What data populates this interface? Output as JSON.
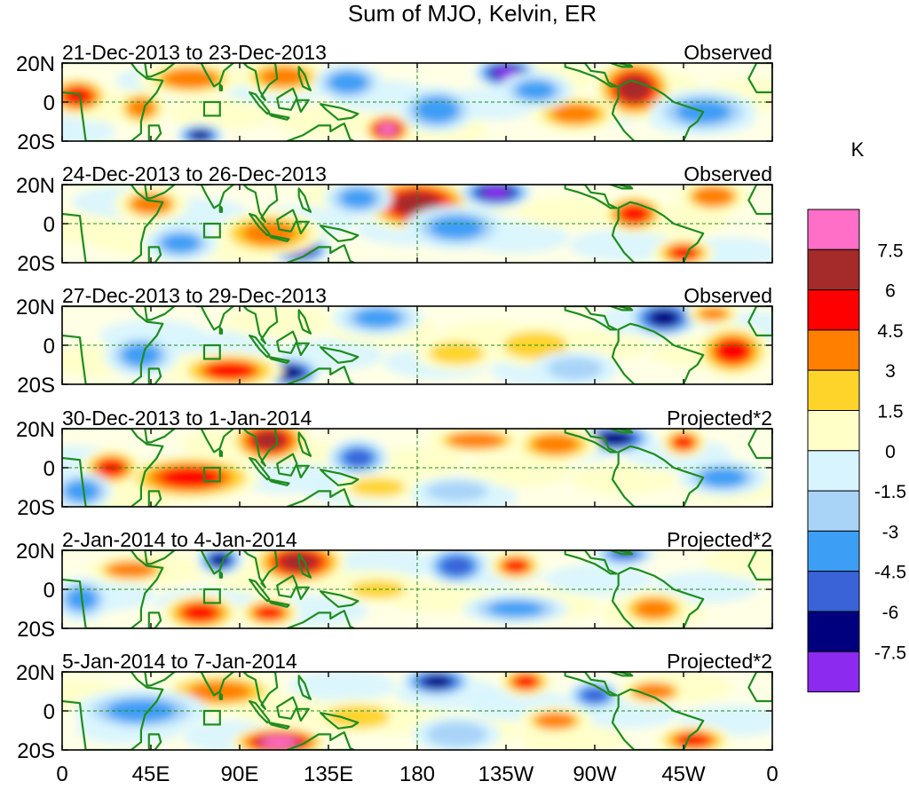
{
  "figure": {
    "title": "Sum of MJO, Kelvin, ER"
  },
  "chart_data": {
    "type": "heatmap",
    "title": "Sum of MJO, Kelvin, ER",
    "x_ticks": [
      "0",
      "45E",
      "90E",
      "135E",
      "180",
      "135W",
      "90W",
      "45W",
      "0"
    ],
    "y_ticks": [
      "20N",
      "0",
      "20S"
    ],
    "panels": [
      {
        "date_range": "21-Dec-2013 to 23-Dec-2013",
        "kind": "Observed",
        "features": [
          {
            "lon": 8,
            "lat": 3,
            "value": 5.5,
            "sx": 8,
            "sy": 5
          },
          {
            "lon": 40,
            "lat": -3,
            "value": 3.5,
            "sx": 7,
            "sy": 5
          },
          {
            "lon": 65,
            "lat": 12,
            "value": 3.2,
            "sx": 14,
            "sy": 5
          },
          {
            "lon": 112,
            "lat": 13,
            "value": 3.5,
            "sx": 12,
            "sy": 5
          },
          {
            "lon": 165,
            "lat": -14,
            "value": 7.8,
            "sx": 6,
            "sy": 4
          },
          {
            "lon": 290,
            "lat": 7,
            "value": 6.5,
            "sx": 10,
            "sy": 8
          },
          {
            "lon": 260,
            "lat": -6,
            "value": 3.5,
            "sx": 12,
            "sy": 5
          },
          {
            "lon": 225,
            "lat": 15,
            "value": -8,
            "sx": 8,
            "sy": 4
          },
          {
            "lon": 190,
            "lat": -4,
            "value": -4.5,
            "sx": 10,
            "sy": 6
          },
          {
            "lon": 145,
            "lat": 10,
            "value": -4.5,
            "sx": 9,
            "sy": 5
          },
          {
            "lon": 70,
            "lat": -17,
            "value": -7,
            "sx": 6,
            "sy": 3
          },
          {
            "lon": 325,
            "lat": -5,
            "value": -4,
            "sx": 14,
            "sy": 6
          },
          {
            "lon": 240,
            "lat": 6,
            "value": -3.5,
            "sx": 10,
            "sy": 5
          }
        ]
      },
      {
        "date_range": "24-Dec-2013 to 26-Dec-2013",
        "kind": "Observed",
        "features": [
          {
            "lon": 180,
            "lat": 10,
            "value": 7.2,
            "sx": 14,
            "sy": 7
          },
          {
            "lon": 120,
            "lat": -13,
            "value": -8,
            "sx": 8,
            "sy": 4
          },
          {
            "lon": 105,
            "lat": -5,
            "value": 4,
            "sx": 14,
            "sy": 6
          },
          {
            "lon": 290,
            "lat": 5,
            "value": 5.5,
            "sx": 8,
            "sy": 5
          },
          {
            "lon": 220,
            "lat": 16,
            "value": -8,
            "sx": 9,
            "sy": 4
          },
          {
            "lon": 200,
            "lat": -2,
            "value": -3.5,
            "sx": 14,
            "sy": 6
          },
          {
            "lon": 45,
            "lat": 10,
            "value": 3,
            "sx": 10,
            "sy": 5
          },
          {
            "lon": 150,
            "lat": 13,
            "value": -4,
            "sx": 9,
            "sy": 5
          },
          {
            "lon": 315,
            "lat": -15,
            "value": 4.5,
            "sx": 8,
            "sy": 4
          },
          {
            "lon": 330,
            "lat": 14,
            "value": 3,
            "sx": 10,
            "sy": 5
          },
          {
            "lon": 60,
            "lat": -10,
            "value": -3.5,
            "sx": 10,
            "sy": 5
          }
        ]
      },
      {
        "date_range": "27-Dec-2013 to 29-Dec-2013",
        "kind": "Observed",
        "features": [
          {
            "lon": 115,
            "lat": -14,
            "value": -7.5,
            "sx": 8,
            "sy": 4
          },
          {
            "lon": 85,
            "lat": -13,
            "value": 4.5,
            "sx": 14,
            "sy": 5
          },
          {
            "lon": 305,
            "lat": 14,
            "value": -7,
            "sx": 9,
            "sy": 5
          },
          {
            "lon": 340,
            "lat": -3,
            "value": 4.5,
            "sx": 10,
            "sy": 7
          },
          {
            "lon": 330,
            "lat": 16,
            "value": 4,
            "sx": 7,
            "sy": 3
          },
          {
            "lon": 240,
            "lat": 0,
            "value": 2.5,
            "sx": 14,
            "sy": 6
          },
          {
            "lon": 160,
            "lat": 14,
            "value": -3.5,
            "sx": 12,
            "sy": 5
          },
          {
            "lon": 40,
            "lat": -5,
            "value": -3.5,
            "sx": 10,
            "sy": 6
          },
          {
            "lon": 200,
            "lat": -4,
            "value": 2,
            "sx": 12,
            "sy": 5
          },
          {
            "lon": 260,
            "lat": -12,
            "value": -2.5,
            "sx": 12,
            "sy": 5
          }
        ]
      },
      {
        "date_range": "30-Dec-2013 to 1-Jan-2014",
        "kind": "Projected*2",
        "features": [
          {
            "lon": 105,
            "lat": 14,
            "value": 6.5,
            "sx": 10,
            "sy": 6
          },
          {
            "lon": 65,
            "lat": -5,
            "value": 5,
            "sx": 18,
            "sy": 6
          },
          {
            "lon": 25,
            "lat": 0,
            "value": 4.5,
            "sx": 8,
            "sy": 5
          },
          {
            "lon": 280,
            "lat": 15,
            "value": -7.5,
            "sx": 10,
            "sy": 4
          },
          {
            "lon": 315,
            "lat": 13,
            "value": 4.5,
            "sx": 6,
            "sy": 4
          },
          {
            "lon": 250,
            "lat": 12,
            "value": 3.5,
            "sx": 12,
            "sy": 5
          },
          {
            "lon": 210,
            "lat": 14,
            "value": 3,
            "sx": 14,
            "sy": 4
          },
          {
            "lon": 150,
            "lat": 5,
            "value": -5,
            "sx": 8,
            "sy": 5
          },
          {
            "lon": 10,
            "lat": -12,
            "value": -4.5,
            "sx": 8,
            "sy": 5
          },
          {
            "lon": 160,
            "lat": -10,
            "value": 2,
            "sx": 12,
            "sy": 4
          },
          {
            "lon": 335,
            "lat": -5,
            "value": -3.5,
            "sx": 12,
            "sy": 5
          },
          {
            "lon": 200,
            "lat": -12,
            "value": -3,
            "sx": 12,
            "sy": 4
          }
        ]
      },
      {
        "date_range": "2-Jan-2014 to 4-Jan-2014",
        "kind": "Projected*2",
        "features": [
          {
            "lon": 120,
            "lat": 14,
            "value": 6.5,
            "sx": 12,
            "sy": 6
          },
          {
            "lon": 70,
            "lat": -12,
            "value": 5,
            "sx": 10,
            "sy": 5
          },
          {
            "lon": 105,
            "lat": -12,
            "value": 4.5,
            "sx": 8,
            "sy": 4
          },
          {
            "lon": 80,
            "lat": 15,
            "value": -6.5,
            "sx": 6,
            "sy": 4
          },
          {
            "lon": 200,
            "lat": 12,
            "value": -6,
            "sx": 8,
            "sy": 5
          },
          {
            "lon": 230,
            "lat": 12,
            "value": 4.5,
            "sx": 7,
            "sy": 4
          },
          {
            "lon": 285,
            "lat": 18,
            "value": -5,
            "sx": 8,
            "sy": 3
          },
          {
            "lon": 300,
            "lat": -10,
            "value": 3.5,
            "sx": 10,
            "sy": 5
          },
          {
            "lon": 230,
            "lat": -10,
            "value": -4,
            "sx": 14,
            "sy": 4
          },
          {
            "lon": 10,
            "lat": -5,
            "value": -3.5,
            "sx": 8,
            "sy": 6
          },
          {
            "lon": 35,
            "lat": 10,
            "value": 3,
            "sx": 12,
            "sy": 4
          },
          {
            "lon": 160,
            "lat": 0,
            "value": 2,
            "sx": 12,
            "sy": 4
          }
        ]
      },
      {
        "date_range": "5-Jan-2014 to 7-Jan-2014",
        "kind": "Projected*2",
        "features": [
          {
            "lon": 110,
            "lat": -16,
            "value": 7.8,
            "sx": 12,
            "sy": 4
          },
          {
            "lon": 80,
            "lat": 10,
            "value": 4,
            "sx": 16,
            "sy": 5
          },
          {
            "lon": 190,
            "lat": 15,
            "value": -7,
            "sx": 9,
            "sy": 4
          },
          {
            "lon": 235,
            "lat": 15,
            "value": 4.5,
            "sx": 7,
            "sy": 4
          },
          {
            "lon": 320,
            "lat": -15,
            "value": 4.5,
            "sx": 10,
            "sy": 4
          },
          {
            "lon": 270,
            "lat": 8,
            "value": -5.5,
            "sx": 7,
            "sy": 4
          },
          {
            "lon": 40,
            "lat": 0,
            "value": -3.5,
            "sx": 18,
            "sy": 6
          },
          {
            "lon": 150,
            "lat": -3,
            "value": 2.5,
            "sx": 14,
            "sy": 5
          },
          {
            "lon": 300,
            "lat": 10,
            "value": 3,
            "sx": 10,
            "sy": 4
          },
          {
            "lon": 200,
            "lat": -12,
            "value": -3,
            "sx": 12,
            "sy": 5
          },
          {
            "lon": 250,
            "lat": -5,
            "value": 3,
            "sx": 10,
            "sy": 4
          }
        ]
      }
    ]
  },
  "colorbar": {
    "unit": "K",
    "labels": [
      "7.5",
      "6",
      "4.5",
      "3",
      "1.5",
      "0",
      "-1.5",
      "-3",
      "-4.5",
      "-6",
      "-7.5"
    ],
    "colors": [
      "#ff6ec7",
      "#a52a2a",
      "#ff0000",
      "#ff7f00",
      "#ffd42a",
      "#ffffc8",
      "#d8f5ff",
      "#a9d4f8",
      "#3d9ef5",
      "#3a63d8",
      "#00007f",
      "#8c2af0"
    ]
  },
  "style": {
    "coast_color": "#1e8c1e",
    "grid_color": "#1e8c1e"
  }
}
